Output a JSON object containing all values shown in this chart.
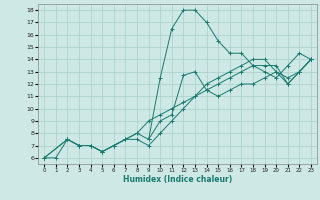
{
  "xlabel": "Humidex (Indice chaleur)",
  "bg_color": "#cde8e5",
  "line_color": "#1a7a6e",
  "grid_color": "#aacfcc",
  "xlim": [
    -0.5,
    23.5
  ],
  "ylim": [
    5.5,
    18.5
  ],
  "xticks": [
    0,
    1,
    2,
    3,
    4,
    5,
    6,
    7,
    8,
    9,
    10,
    11,
    12,
    13,
    14,
    15,
    16,
    17,
    18,
    19,
    20,
    21,
    22,
    23
  ],
  "yticks": [
    6,
    7,
    8,
    9,
    10,
    11,
    12,
    13,
    14,
    15,
    16,
    17,
    18
  ],
  "series": [
    {
      "x": [
        0,
        1,
        2,
        3,
        4,
        5,
        6,
        7,
        8,
        9,
        10,
        11,
        12,
        13,
        14,
        15,
        16,
        17,
        18,
        19,
        20,
        21,
        22,
        23
      ],
      "y": [
        6,
        6,
        7.5,
        7,
        7,
        6.5,
        7,
        7.5,
        8,
        7.5,
        12.5,
        16.5,
        18,
        18,
        17,
        15.5,
        14.5,
        14.5,
        13.5,
        13,
        12.5,
        13.5,
        14.5,
        14
      ]
    },
    {
      "x": [
        0,
        2,
        3,
        4,
        5,
        6,
        7,
        8,
        9,
        10,
        11,
        12,
        13,
        14,
        15,
        16,
        17,
        18,
        19,
        20,
        21,
        22,
        23
      ],
      "y": [
        6,
        7.5,
        7,
        7,
        6.5,
        7,
        7.5,
        7.5,
        7,
        8,
        9,
        10,
        11,
        12,
        12.5,
        13,
        13.5,
        14,
        14,
        13,
        12,
        13,
        14
      ]
    },
    {
      "x": [
        0,
        2,
        3,
        4,
        5,
        6,
        7,
        8,
        9,
        10,
        11,
        12,
        13,
        14,
        15,
        16,
        17,
        18,
        19,
        20,
        21,
        22,
        23
      ],
      "y": [
        6,
        7.5,
        7,
        7,
        6.5,
        7,
        7.5,
        8,
        9,
        9.5,
        10,
        10.5,
        11,
        11.5,
        12,
        12.5,
        13,
        13.5,
        13.5,
        13.5,
        12,
        13,
        14
      ]
    },
    {
      "x": [
        9,
        10,
        11,
        12,
        13,
        14,
        15,
        16,
        17,
        18,
        19,
        20,
        21,
        22,
        23
      ],
      "y": [
        7.5,
        9,
        9.5,
        12.7,
        13,
        11.5,
        11,
        11.5,
        12,
        12,
        12.5,
        13,
        12.5,
        13,
        14
      ]
    }
  ]
}
